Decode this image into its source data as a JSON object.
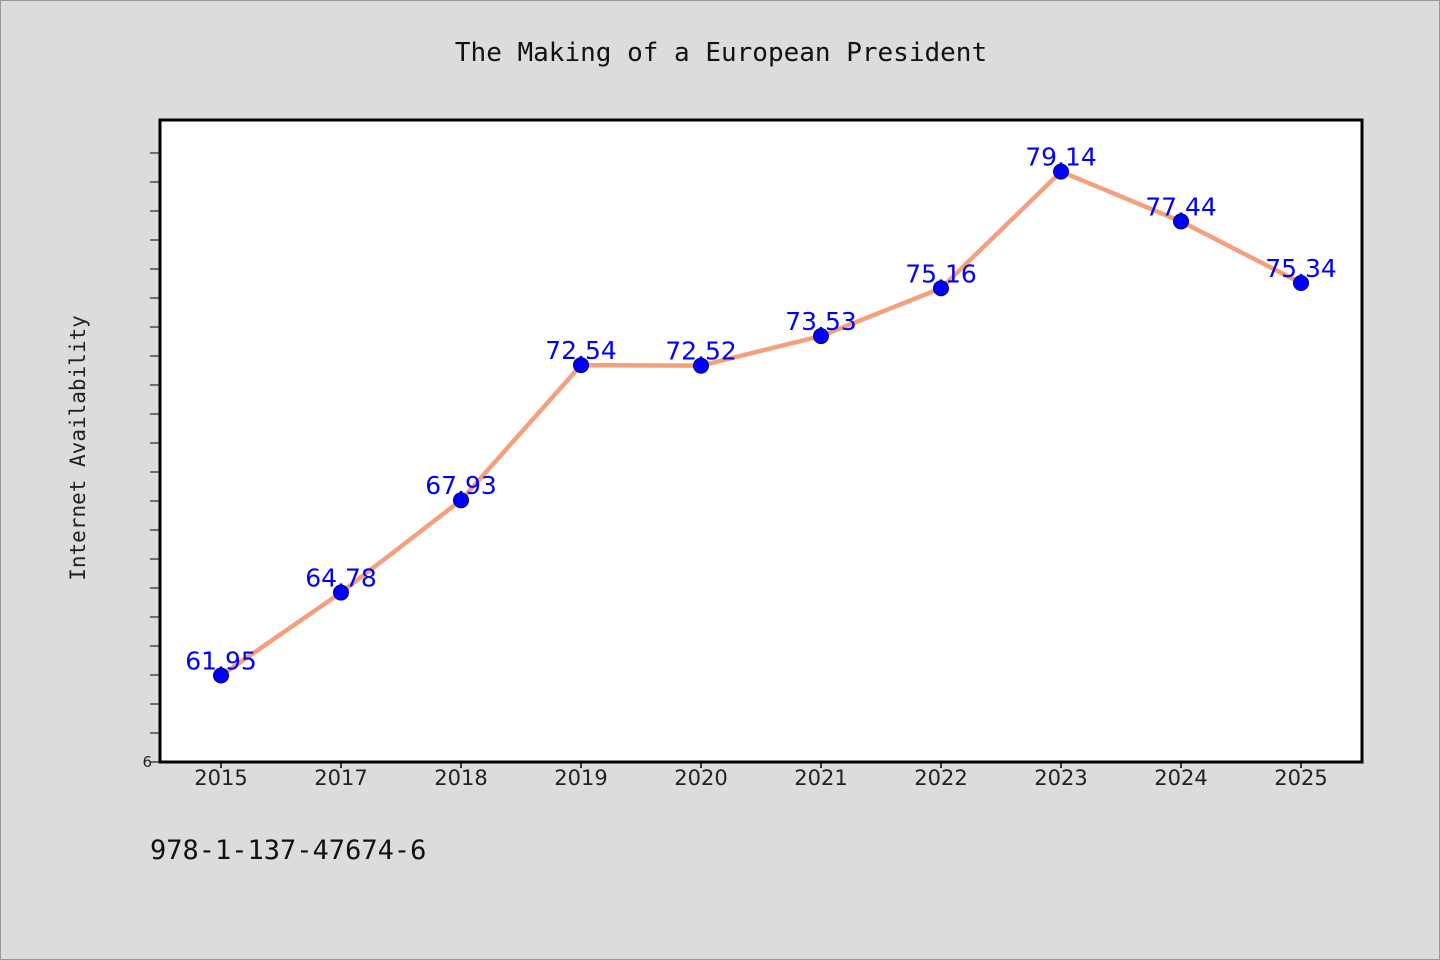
{
  "chart_data": {
    "type": "line",
    "title": "The Making of a European President",
    "xlabel": "",
    "ylabel": "Internet Availability",
    "categories": [
      "2015",
      "2017",
      "2018",
      "2019",
      "2020",
      "2021",
      "2022",
      "2023",
      "2024",
      "2025"
    ],
    "series": [
      {
        "values": [
          61.95,
          64.78,
          67.93,
          72.54,
          72.52,
          73.53,
          75.16,
          79.14,
          77.44,
          75.34
        ]
      }
    ],
    "data_labels": [
      "61.95",
      "64.78",
      "67.93",
      "72.54",
      "72.52",
      "73.53",
      "75.16",
      "79.14",
      "77.44",
      "75.34"
    ],
    "ylim": [
      59,
      80.9
    ],
    "y_tick_labels": [
      "6"
    ],
    "grid": false,
    "legend": "none",
    "colors": {
      "line": "#f4a07c",
      "marker": "#0000ff",
      "marker_edge": "#000080",
      "data_label": "#0000ff",
      "plot_background": "#ffffff",
      "figure_background": "#dcdcdc"
    }
  },
  "footer": {
    "text": "978-1-137-47674-6"
  }
}
